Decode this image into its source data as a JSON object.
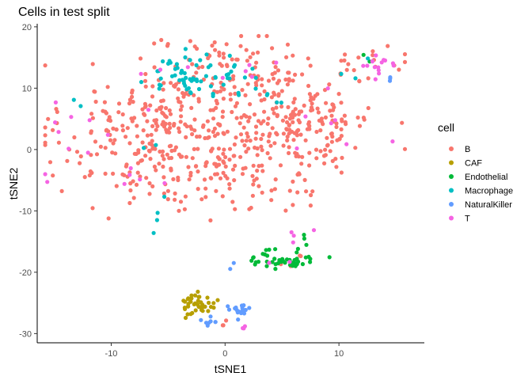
{
  "chart_data": {
    "type": "scatter",
    "title": "Cells in test split",
    "xlabel": "tSNE1",
    "ylabel": "tSNE2",
    "xlim": [
      -16.5,
      17.5
    ],
    "ylim": [
      -31.5,
      20.5
    ],
    "xticks": [
      -10,
      0,
      10
    ],
    "yticks": [
      -30,
      -20,
      -10,
      0,
      10,
      20
    ],
    "grid": false,
    "legend_position": "right",
    "legend_title": "cell",
    "series": [
      {
        "name": "B",
        "color": "#F8766D",
        "clusters": [
          {
            "cx": -5,
            "cy": 3,
            "sx": 4.5,
            "sy": 5.5,
            "n": 300
          },
          {
            "cx": 5.5,
            "cy": 5,
            "sx": 3.8,
            "sy": 5.5,
            "n": 230
          },
          {
            "cx": 0,
            "cy": 14,
            "sx": 4,
            "sy": 2.2,
            "n": 45
          },
          {
            "cx": 12.5,
            "cy": 14,
            "sx": 2,
            "sy": 1.5,
            "n": 18
          },
          {
            "cx": -1,
            "cy": -6,
            "sx": 4,
            "sy": 2,
            "n": 45
          },
          {
            "cx": 9,
            "cy": 1,
            "sx": 2,
            "sy": 4,
            "n": 22
          },
          {
            "cx": -13,
            "cy": 0,
            "sx": 1.5,
            "sy": 5,
            "n": 12
          },
          {
            "cx": 5.5,
            "cy": -18,
            "sx": 1.5,
            "sy": 1,
            "n": 4
          },
          {
            "cx": -0.5,
            "cy": -28.5,
            "sx": 0.5,
            "sy": 0.4,
            "n": 3
          }
        ]
      },
      {
        "name": "CAF",
        "color": "#B79F00",
        "clusters": [
          {
            "cx": -2.3,
            "cy": -25.2,
            "sx": 0.75,
            "sy": 0.9,
            "n": 40
          }
        ]
      },
      {
        "name": "Endothelial",
        "color": "#00BA38",
        "clusters": [
          {
            "cx": 5.2,
            "cy": -17.8,
            "sx": 1.4,
            "sy": 0.9,
            "n": 45
          },
          {
            "cx": 7.5,
            "cy": -14.5,
            "sx": 0.6,
            "sy": 0.8,
            "n": 3
          },
          {
            "cx": 12.5,
            "cy": 15,
            "sx": 0.6,
            "sy": 0.6,
            "n": 2
          }
        ]
      },
      {
        "name": "Macrophage",
        "color": "#00BFC4",
        "clusters": [
          {
            "cx": -3.2,
            "cy": 12,
            "sx": 1.8,
            "sy": 1.7,
            "n": 55
          },
          {
            "cx": 0.7,
            "cy": 11.5,
            "sx": 1.3,
            "sy": 1.6,
            "n": 12
          },
          {
            "cx": -5.5,
            "cy": -8,
            "sx": 0.8,
            "sy": 2,
            "n": 4
          },
          {
            "cx": 5,
            "cy": 8,
            "sx": 1.3,
            "sy": 2,
            "n": 4
          },
          {
            "cx": 12,
            "cy": 13.5,
            "sx": 1.2,
            "sy": 1.2,
            "n": 3
          },
          {
            "cx": -13,
            "cy": 7.5,
            "sx": 0.4,
            "sy": 0.5,
            "n": 2
          },
          {
            "cx": -6,
            "cy": 1,
            "sx": 1,
            "sy": 1,
            "n": 2
          }
        ]
      },
      {
        "name": "NaturalKiller",
        "color": "#619CFF",
        "clusters": [
          {
            "cx": 1.2,
            "cy": -26.3,
            "sx": 0.65,
            "sy": 0.6,
            "n": 18
          },
          {
            "cx": -1.4,
            "cy": -28.2,
            "sx": 0.35,
            "sy": 0.35,
            "n": 8
          },
          {
            "cx": 14.5,
            "cy": 11.5,
            "sx": 0.8,
            "sy": 0.6,
            "n": 3
          },
          {
            "cx": 0.8,
            "cy": -19,
            "sx": 0.5,
            "sy": 0.4,
            "n": 2
          }
        ]
      },
      {
        "name": "T",
        "color": "#F564E3",
        "clusters": [
          {
            "cx": 13.5,
            "cy": 14,
            "sx": 1,
            "sy": 0.9,
            "n": 14
          },
          {
            "cx": 5.8,
            "cy": -15.5,
            "sx": 1.8,
            "sy": 1.5,
            "n": 6
          },
          {
            "cx": -0.5,
            "cy": 14,
            "sx": 3.5,
            "sy": 2.5,
            "n": 8
          },
          {
            "cx": -9,
            "cy": 2,
            "sx": 3.5,
            "sy": 4.5,
            "n": 10
          },
          {
            "cx": 9.5,
            "cy": 2,
            "sx": 2,
            "sy": 5,
            "n": 8
          },
          {
            "cx": -7,
            "cy": -5.5,
            "sx": 1,
            "sy": 1,
            "n": 4
          },
          {
            "cx": 1.5,
            "cy": -29,
            "sx": 0.4,
            "sy": 0.2,
            "n": 3
          },
          {
            "cx": -14.5,
            "cy": 4,
            "sx": 1,
            "sy": 1,
            "n": 2
          }
        ]
      }
    ]
  }
}
